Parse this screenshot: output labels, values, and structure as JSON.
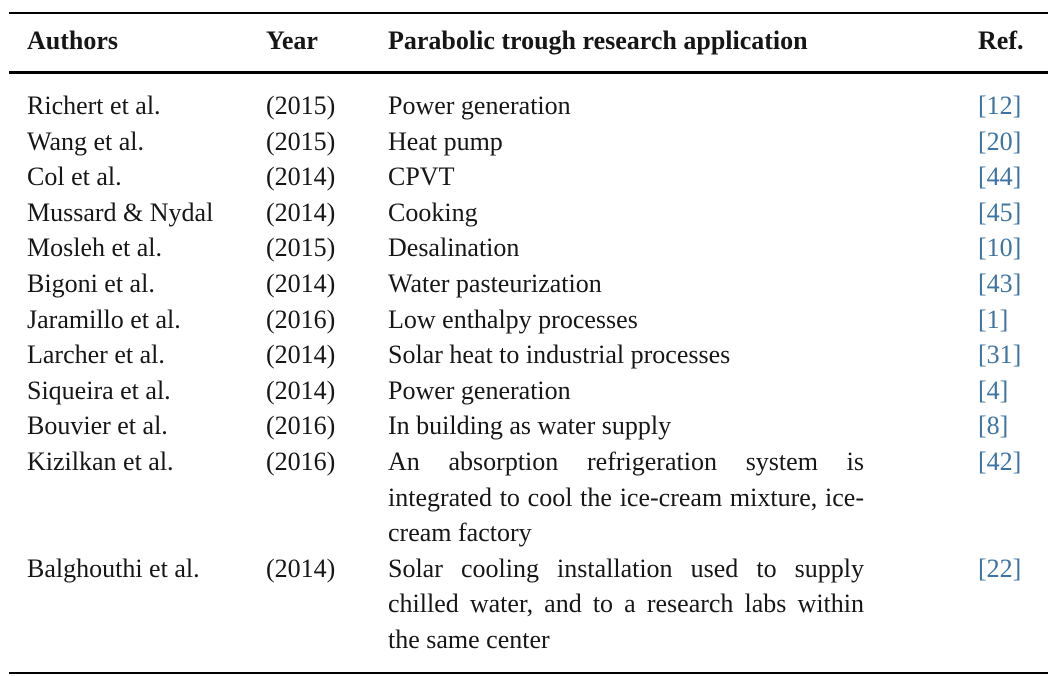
{
  "page": {
    "background": "#ffffff"
  },
  "table": {
    "headers": {
      "authors": "Authors",
      "year": "Year",
      "application": "Parabolic trough research application",
      "ref": "Ref."
    },
    "rows": [
      {
        "authors": "Richert et al.",
        "year": "(2015)",
        "application": "Power generation",
        "ref": "[12]"
      },
      {
        "authors": "Wang et al.",
        "year": "(2015)",
        "application": "Heat pump",
        "ref": "[20]"
      },
      {
        "authors": "Col et al.",
        "year": "(2014)",
        "application": "CPVT",
        "ref": "[44]"
      },
      {
        "authors": "Mussard & Nydal",
        "year": "(2014)",
        "application": "Cooking",
        "ref": "[45]"
      },
      {
        "authors": "Mosleh et al.",
        "year": "(2015)",
        "application": "Desalination",
        "ref": "[10]"
      },
      {
        "authors": "Bigoni et al.",
        "year": "(2014)",
        "application": "Water pasteurization",
        "ref": "[43]"
      },
      {
        "authors": "Jaramillo et al.",
        "year": "(2016)",
        "application": "Low enthalpy processes",
        "ref": "[1]"
      },
      {
        "authors": "Larcher et al.",
        "year": "(2014)",
        "application": "Solar heat to industrial processes",
        "ref": "[31]"
      },
      {
        "authors": "Siqueira et al.",
        "year": "(2014)",
        "application": "Power generation",
        "ref": "[4]"
      },
      {
        "authors": "Bouvier et al.",
        "year": "(2016)",
        "application": "In building as water supply",
        "ref": "[8]"
      },
      {
        "authors": "Kizilkan et al.",
        "year": "(2016)",
        "application": "An absorption refrigeration system is integrated to cool the ice-cream mixture, ice-cream factory",
        "ref": "[42]"
      },
      {
        "authors": "Balghouthi et al.",
        "year": "(2014)",
        "application": "Solar cooling installation used to supply chilled water, and to a research labs within the same center",
        "ref": "[22]"
      }
    ],
    "colors": {
      "text": "#161616",
      "reference_link": "#3d74a3",
      "rule": "#000000"
    }
  }
}
